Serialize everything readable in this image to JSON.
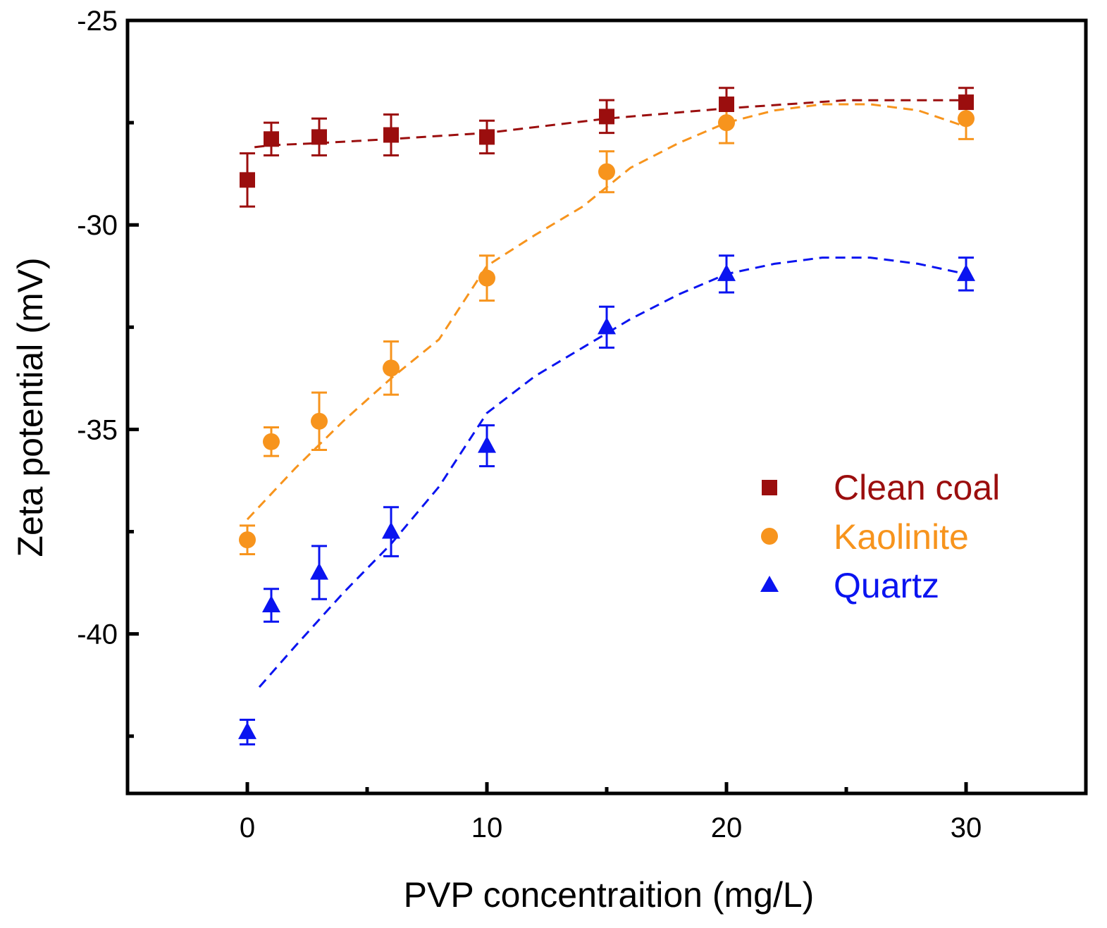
{
  "chart_data": {
    "type": "scatter",
    "title": "",
    "xlabel": "PVP concentraition (mg/L)",
    "ylabel": "Zeta potential (mV)",
    "xlim": [
      -5,
      35
    ],
    "ylim": [
      -43.9,
      -25
    ],
    "x_ticks": [
      0,
      10,
      20,
      30
    ],
    "x_minor_ticks": [
      5,
      15,
      25
    ],
    "y_ticks": [
      -40,
      -35,
      -30,
      -25
    ],
    "y_minor_ticks": [
      -42.5,
      -37.5,
      -32.5,
      -27.5
    ],
    "x_tick_labels": [
      "0",
      "10",
      "20",
      "30"
    ],
    "y_tick_labels": [
      "-40",
      "-35",
      "-30",
      "-25"
    ],
    "legend_position": "right-middle",
    "grid": false,
    "series": [
      {
        "name": "Clean coal",
        "color": "#9b0e0e",
        "marker": "square",
        "x": [
          0,
          1,
          3,
          6,
          10,
          15,
          20,
          30
        ],
        "y": [
          -28.9,
          -27.9,
          -27.85,
          -27.8,
          -27.85,
          -27.35,
          -27.05,
          -27.0
        ],
        "err": [
          0.65,
          0.4,
          0.45,
          0.5,
          0.4,
          0.4,
          0.4,
          0.35
        ],
        "fit_x": [
          0.3,
          1,
          3,
          6,
          10,
          15,
          20,
          25,
          30
        ],
        "fit_y": [
          -28.1,
          -28.05,
          -28.0,
          -27.9,
          -27.75,
          -27.4,
          -27.15,
          -26.95,
          -26.95
        ]
      },
      {
        "name": "Kaolinite",
        "color": "#f7941d",
        "marker": "circle",
        "x": [
          0,
          1,
          3,
          6,
          10,
          15,
          20,
          30
        ],
        "y": [
          -37.7,
          -35.3,
          -34.8,
          -33.5,
          -31.3,
          -28.7,
          -27.5,
          -27.4
        ],
        "err": [
          0.35,
          0.35,
          0.7,
          0.65,
          0.55,
          0.5,
          0.5,
          0.5
        ],
        "fit_x": [
          0,
          2,
          4,
          6,
          8,
          10,
          12,
          14,
          16,
          18,
          20,
          22,
          24,
          26,
          28,
          30
        ],
        "fit_y": [
          -37.2,
          -35.95,
          -34.8,
          -33.75,
          -32.8,
          -31.0,
          -30.25,
          -29.55,
          -28.6,
          -28.0,
          -27.5,
          -27.2,
          -27.05,
          -27.05,
          -27.2,
          -27.6
        ]
      },
      {
        "name": "Quartz",
        "color": "#0a14f0",
        "marker": "triangle",
        "x": [
          0,
          1,
          3,
          6,
          10,
          15,
          20,
          30
        ],
        "y": [
          -42.4,
          -39.3,
          -38.5,
          -37.5,
          -35.4,
          -32.5,
          -31.2,
          -31.2
        ],
        "err": [
          0.3,
          0.4,
          0.65,
          0.6,
          0.5,
          0.5,
          0.45,
          0.4
        ],
        "fit_x": [
          0.5,
          2,
          4,
          6,
          8,
          10,
          12,
          14,
          16,
          18,
          20,
          22,
          24,
          26,
          28,
          30
        ],
        "fit_y": [
          -41.3,
          -40.3,
          -39.0,
          -37.8,
          -36.4,
          -34.6,
          -33.7,
          -33.0,
          -32.3,
          -31.7,
          -31.2,
          -30.95,
          -30.8,
          -30.8,
          -30.95,
          -31.2
        ]
      }
    ]
  }
}
